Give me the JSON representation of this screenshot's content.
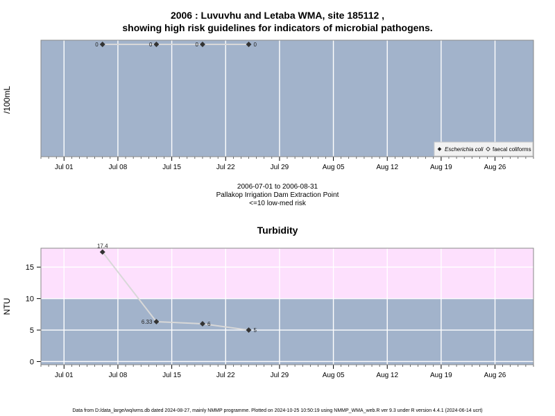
{
  "header": {
    "title_line1": "2006 : Luvuvhu and Letaba WMA, site 185112 ,",
    "title_line2": "showing high risk guidelines for indicators of microbial pathogens."
  },
  "chart_data": [
    {
      "type": "line",
      "ylabel": "/100mL",
      "xlabel": "",
      "x_ticks": [
        "Jul 01",
        "Jul 08",
        "Jul 15",
        "Jul 22",
        "Jul 29",
        "Aug 05",
        "Aug 12",
        "Aug 19",
        "Aug 26"
      ],
      "xlim": [
        "2006-06-28",
        "2006-08-31"
      ],
      "series": [
        {
          "name": "Escherichia coli",
          "x": [
            "2006-07-06",
            "2006-07-13",
            "2006-07-19",
            "2006-07-25"
          ],
          "values": [
            0,
            0,
            0,
            0
          ],
          "labels": [
            "0",
            "0",
            "0",
            "0"
          ]
        }
      ],
      "legend": {
        "position": "bottom-right",
        "entries": [
          "Escherichia coli",
          "faecal coliforms"
        ]
      },
      "notes": {
        "period": "2006-07-01 to 2006-08-31",
        "site_name": "Pallakop Irrigation Dam Extraction Point",
        "guideline": "<=10 low-med risk"
      },
      "colors": {
        "panel": "#a2b3cb",
        "grid": "#ffffff",
        "line": "#d8d8d8",
        "point": "#333333"
      }
    },
    {
      "type": "line",
      "title": "Turbidity",
      "ylabel": "NTU",
      "xlabel": "",
      "ylim": [
        -0.5,
        18
      ],
      "y_ticks": [
        0,
        5,
        10,
        15
      ],
      "x_ticks": [
        "Jul 01",
        "Jul 08",
        "Jul 15",
        "Jul 22",
        "Jul 29",
        "Aug 05",
        "Aug 12",
        "Aug 19",
        "Aug 26"
      ],
      "xlim": [
        "2006-06-28",
        "2006-08-31"
      ],
      "high_risk_threshold": 10,
      "series": [
        {
          "name": "Turbidity",
          "x": [
            "2006-07-06",
            "2006-07-13",
            "2006-07-19",
            "2006-07-25"
          ],
          "values": [
            17.4,
            6.33,
            6,
            5
          ],
          "labels": [
            "17.4",
            "6.33",
            "6",
            "5"
          ]
        }
      ],
      "colors": {
        "panel": "#a2b3cb",
        "high_band": "#fde0fd",
        "grid": "#ffffff",
        "line": "#d8d8d8",
        "point": "#333333"
      }
    }
  ],
  "footer": {
    "text": "Data from D:/data_large/wq/wms.db dated 2024-08-27, mainly NMMP programme. Plotted on 2024-10-25 10:50:19 using NMMP_WMA_web.R ver 9.3 under R version 4.4.1 (2024-06-14 ucrt)"
  }
}
